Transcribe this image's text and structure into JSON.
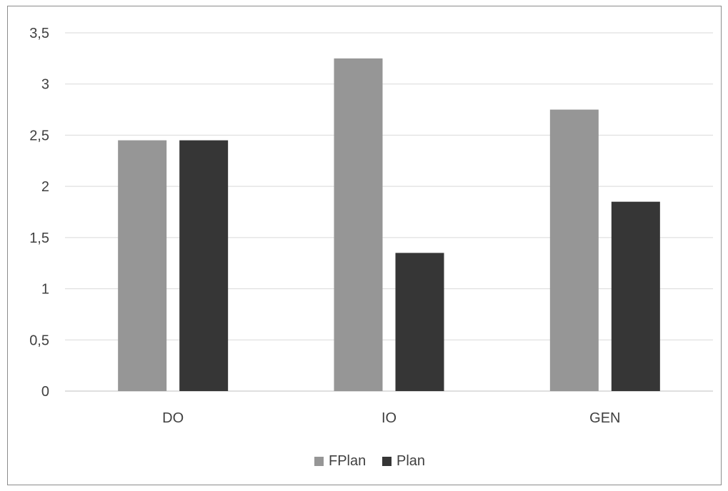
{
  "chart_data": {
    "type": "bar",
    "categories": [
      "DO",
      "IO",
      "GEN"
    ],
    "series": [
      {
        "name": "FPlan",
        "values": [
          2.45,
          3.25,
          2.75
        ],
        "color": "#969696"
      },
      {
        "name": "Plan",
        "values": [
          2.45,
          1.35,
          1.85
        ],
        "color": "#363636"
      }
    ],
    "ylim": [
      0,
      3.5
    ],
    "yticks": [
      "0",
      "0,5",
      "1",
      "1,5",
      "2",
      "2,5",
      "3",
      "3,5"
    ],
    "grid": true,
    "gridline_color": "#d9d9d9",
    "legend_position": "bottom",
    "title": "",
    "xlabel": "",
    "ylabel": ""
  }
}
